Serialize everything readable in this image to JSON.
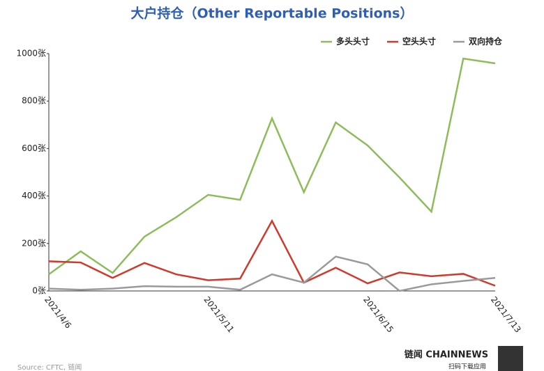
{
  "chart_data": {
    "type": "line",
    "title": "大户持仓（Other Reportable Positions）",
    "categories": [
      "2021/4/6",
      null,
      null,
      null,
      null,
      "2021/5/11",
      null,
      null,
      null,
      null,
      "2021/6/15",
      null,
      null,
      null,
      "2021/7/13"
    ],
    "series": [
      {
        "name": "多头头寸",
        "color": "#8fbc5a",
        "values": [
          70,
          167,
          76,
          229,
          311,
          405,
          384,
          727,
          416,
          710,
          613,
          478,
          334,
          979,
          959
        ]
      },
      {
        "name": "空头头寸",
        "color": "#d0392b",
        "values": [
          125,
          120,
          55,
          118,
          70,
          45,
          52,
          295,
          35,
          98,
          32,
          78,
          62,
          72,
          22
        ]
      },
      {
        "name": "双向持仓",
        "color": "#9a9a9a",
        "values": [
          10,
          5,
          10,
          20,
          18,
          18,
          5,
          70,
          35,
          145,
          112,
          0,
          28,
          42,
          55
        ]
      }
    ],
    "ylim": [
      0,
      1000
    ],
    "yticks": [
      {
        "value": 0,
        "label": "0张"
      },
      {
        "value": 200,
        "label": "200张"
      },
      {
        "value": 400,
        "label": "400张"
      },
      {
        "value": 600,
        "label": "600张"
      },
      {
        "value": 800,
        "label": "800张"
      },
      {
        "value": 1000,
        "label": "1000张"
      }
    ],
    "legend": "top-right",
    "grid": false,
    "source": "Source: CFTC, 链闻",
    "brand": "链闻 CHAINNEWS",
    "brand_sub": "扫码下载应用"
  }
}
